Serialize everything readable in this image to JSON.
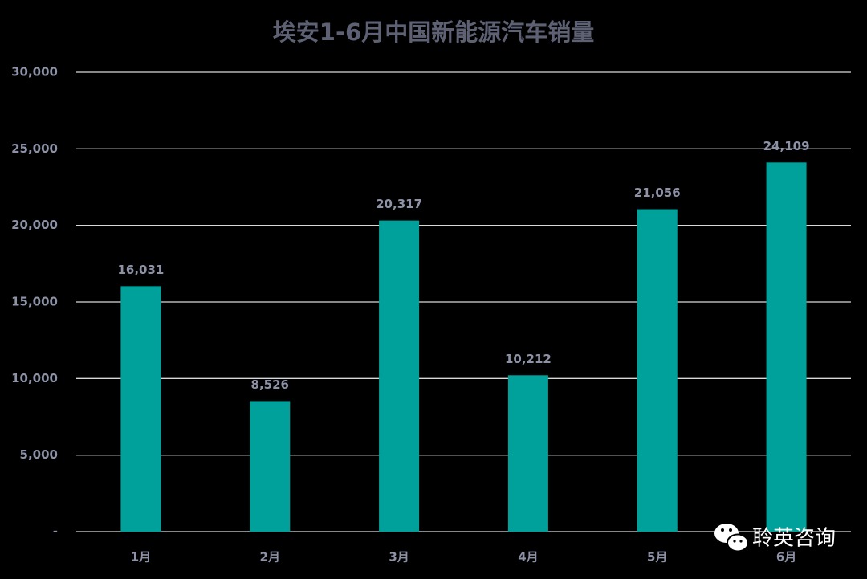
{
  "chart_data": {
    "type": "bar",
    "title": "埃安1-6月中国新能源汽车销量",
    "categories": [
      "1月",
      "2月",
      "3月",
      "4月",
      "5月",
      "6月"
    ],
    "values": [
      16031,
      8526,
      20317,
      10212,
      21056,
      24109
    ],
    "value_labels": [
      "16,031",
      "8,526",
      "20,317",
      "10,212",
      "21,056",
      "24,109"
    ],
    "color": "#00a19a",
    "ylim": [
      0,
      30000
    ],
    "yticks": [
      {
        "value": 0,
        "label": "-"
      },
      {
        "value": 5000,
        "label": "5,000"
      },
      {
        "value": 10000,
        "label": "10,000"
      },
      {
        "value": 15000,
        "label": "15,000"
      },
      {
        "value": 20000,
        "label": "20,000"
      },
      {
        "value": 25000,
        "label": "25,000"
      },
      {
        "value": 30000,
        "label": "30,000"
      }
    ],
    "grid": true,
    "watermark": "聆英咨询"
  }
}
